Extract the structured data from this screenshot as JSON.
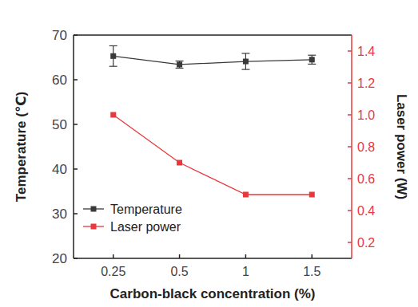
{
  "chart_data": {
    "type": "line",
    "x_label": "Carbon-black concentration (%)",
    "y_label": "Temperature (℃)",
    "y2_label": "Laser power (W)",
    "categories": [
      "0.25",
      "0.5",
      "1",
      "1.5"
    ],
    "ylim": [
      20,
      70
    ],
    "yticks": [
      20,
      30,
      40,
      50,
      60,
      70
    ],
    "y2lim": [
      0.1,
      1.5
    ],
    "y2ticks": [
      {
        "value": 0.2,
        "label": "0.2"
      },
      {
        "value": 0.4,
        "label": "0.4"
      },
      {
        "value": 0.6,
        "label": "0.6"
      },
      {
        "value": 0.8,
        "label": "0.8"
      },
      {
        "value": 1.0,
        "label": "1.0"
      },
      {
        "value": 1.2,
        "label": "1.2"
      },
      {
        "value": 1.4,
        "label": "1.4"
      }
    ],
    "legend": "lower left",
    "grid": false,
    "series": [
      {
        "name": "Temperature",
        "color": "#3a3a3a",
        "marker": "square",
        "values": [
          65.3,
          63.4,
          64.1,
          64.5
        ],
        "errors": [
          2.3,
          0.8,
          1.8,
          1.0
        ]
      },
      {
        "name": "Laser power",
        "color": "#e8383d",
        "marker": "square",
        "axis": "y2",
        "values": [
          1.0,
          0.7,
          0.5,
          0.5
        ]
      }
    ]
  }
}
